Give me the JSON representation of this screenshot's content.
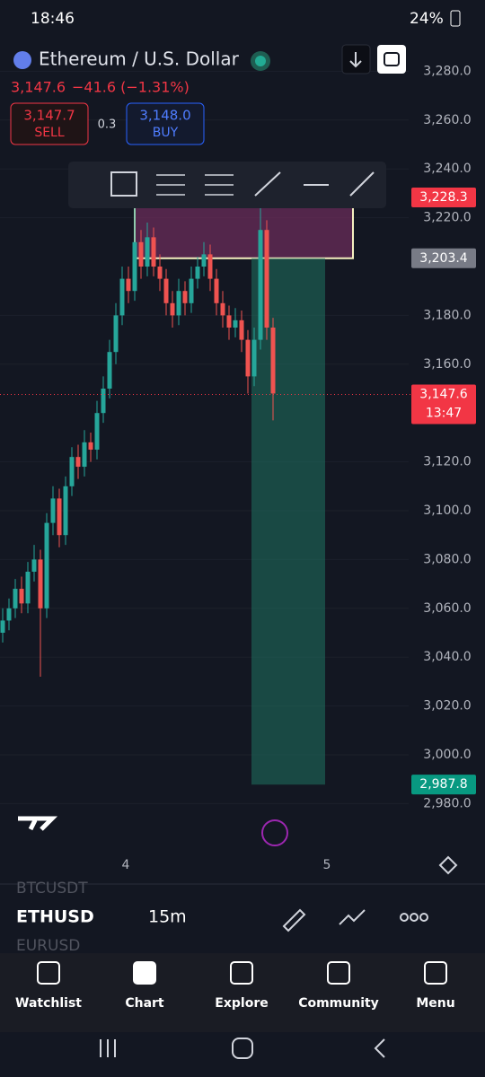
{
  "status_bar": {
    "time": "18:46",
    "battery": "24%"
  },
  "header": {
    "symbol": "Ethereum / U.S. Dollar",
    "price": "3,147.6",
    "change": "−41.6 (−1.31%)",
    "sell": {
      "price": "3,147.7",
      "label": "SELL"
    },
    "spread": "0.3",
    "buy": {
      "price": "3,148.0",
      "label": "BUY"
    }
  },
  "chart": {
    "yticks": [
      {
        "value": 3280,
        "label": "3,280.0"
      },
      {
        "value": 3260,
        "label": "3,260.0"
      },
      {
        "value": 3240,
        "label": "3,240.0"
      },
      {
        "value": 3220,
        "label": "3,220.0"
      },
      {
        "value": 3180,
        "label": "3,180.0"
      },
      {
        "value": 3160,
        "label": "3,160.0"
      },
      {
        "value": 3120,
        "label": "3,120.0"
      },
      {
        "value": 3100,
        "label": "3,100.0"
      },
      {
        "value": 3080,
        "label": "3,080.0"
      },
      {
        "value": 3060,
        "label": "3,060.0"
      },
      {
        "value": 3040,
        "label": "3,040.0"
      },
      {
        "value": 3020,
        "label": "3,020.0"
      },
      {
        "value": 3000,
        "label": "3,000.0"
      },
      {
        "value": 2980,
        "label": "2,980.0"
      }
    ],
    "xticks": [
      "4",
      "5"
    ],
    "stop": {
      "value": 3228.3,
      "label": "3,228.3"
    },
    "entry": {
      "value": 3203.4,
      "label": "3,203.4"
    },
    "last": {
      "value": 3147.6,
      "label": "3,147.6",
      "countdown": "13:47"
    },
    "target": {
      "value": 2987.8,
      "label": "2,987.8"
    },
    "candles": [
      [
        3050,
        3060,
        3046,
        3055
      ],
      [
        3055,
        3064,
        3051,
        3060
      ],
      [
        3060,
        3072,
        3056,
        3068
      ],
      [
        3068,
        3073,
        3058,
        3062
      ],
      [
        3062,
        3079,
        3058,
        3075
      ],
      [
        3075,
        3086,
        3071,
        3080
      ],
      [
        3080,
        3084,
        3032,
        3060
      ],
      [
        3060,
        3099,
        3056,
        3095
      ],
      [
        3095,
        3110,
        3090,
        3105
      ],
      [
        3105,
        3109,
        3085,
        3090
      ],
      [
        3090,
        3114,
        3086,
        3110
      ],
      [
        3110,
        3126,
        3106,
        3122
      ],
      [
        3122,
        3127,
        3113,
        3118
      ],
      [
        3118,
        3133,
        3114,
        3128
      ],
      [
        3128,
        3132,
        3120,
        3125
      ],
      [
        3125,
        3145,
        3121,
        3140
      ],
      [
        3140,
        3155,
        3136,
        3150
      ],
      [
        3150,
        3170,
        3146,
        3165
      ],
      [
        3165,
        3185,
        3160,
        3180
      ],
      [
        3180,
        3200,
        3176,
        3195
      ],
      [
        3195,
        3200,
        3185,
        3190
      ],
      [
        3190,
        3225,
        3186,
        3210
      ],
      [
        3210,
        3215,
        3195,
        3200
      ],
      [
        3200,
        3218,
        3196,
        3212
      ],
      [
        3212,
        3216,
        3196,
        3200
      ],
      [
        3200,
        3205,
        3190,
        3195
      ],
      [
        3195,
        3199,
        3180,
        3185
      ],
      [
        3185,
        3190,
        3175,
        3180
      ],
      [
        3180,
        3195,
        3176,
        3190
      ],
      [
        3190,
        3194,
        3180,
        3185
      ],
      [
        3185,
        3200,
        3181,
        3195
      ],
      [
        3195,
        3204,
        3191,
        3200
      ],
      [
        3200,
        3210,
        3196,
        3205
      ],
      [
        3205,
        3209,
        3190,
        3195
      ],
      [
        3195,
        3199,
        3180,
        3185
      ],
      [
        3185,
        3190,
        3175,
        3180
      ],
      [
        3180,
        3184,
        3170,
        3175
      ],
      [
        3175,
        3183,
        3171,
        3178
      ],
      [
        3178,
        3182,
        3165,
        3170
      ],
      [
        3170,
        3174,
        3148,
        3155
      ],
      [
        3155,
        3175,
        3151,
        3170
      ],
      [
        3170,
        3225,
        3166,
        3215
      ],
      [
        3215,
        3219,
        3170,
        3175
      ],
      [
        3175,
        3179,
        3137,
        3148
      ]
    ]
  },
  "watchlist": {
    "items": [
      "BTCUSDT",
      "ETHUSD",
      "EURUSD"
    ],
    "interval": "15m"
  },
  "nav": [
    "Watchlist",
    "Chart",
    "Explore",
    "Community",
    "Menu"
  ]
}
